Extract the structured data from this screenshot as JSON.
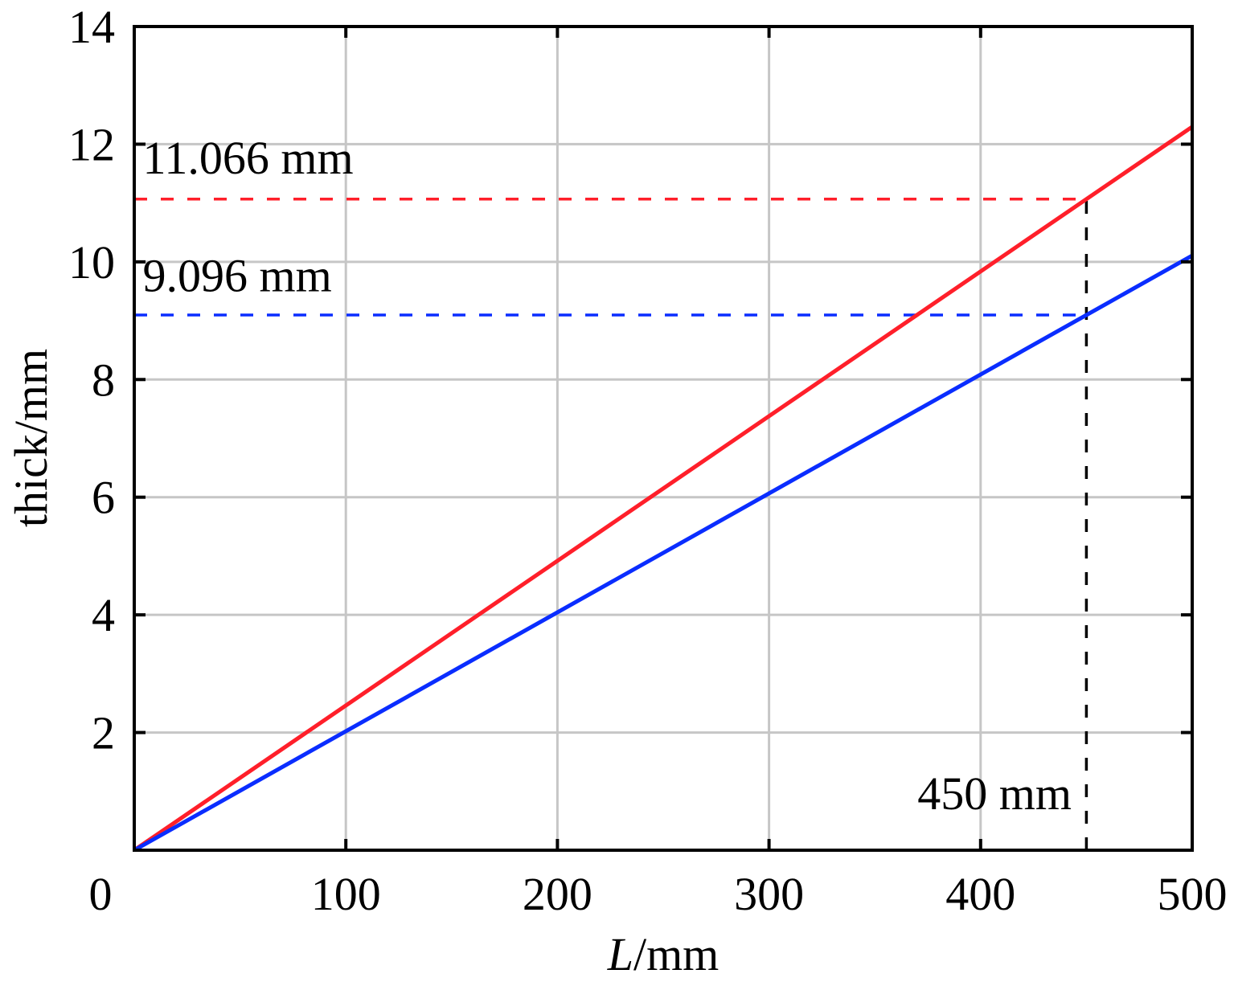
{
  "chart_data": {
    "type": "line",
    "title": "",
    "xlabel_italic": "L",
    "xlabel_rest": "/mm",
    "ylabel": "thick/mm",
    "xlim": [
      0,
      500
    ],
    "ylim": [
      0,
      14
    ],
    "xticks": [
      100,
      200,
      300,
      400,
      500
    ],
    "yticks": [
      2,
      4,
      6,
      8,
      10,
      12,
      14
    ],
    "origin_label": "0",
    "grid": true,
    "series": [
      {
        "name": "red",
        "color": "#ff1f2a",
        "x": [
          0,
          500
        ],
        "y": [
          0,
          12.296
        ]
      },
      {
        "name": "blue",
        "color": "#0a2dff",
        "x": [
          0,
          500
        ],
        "y": [
          0,
          10.107
        ]
      }
    ],
    "reference_lines": [
      {
        "type": "horizontal",
        "y": 11.066,
        "x_range": [
          0,
          450
        ],
        "color": "#ff1f2a"
      },
      {
        "type": "horizontal",
        "y": 9.096,
        "x_range": [
          0,
          450
        ],
        "color": "#0a2dff"
      },
      {
        "type": "vertical",
        "x": 450,
        "y_range": [
          0,
          11.066
        ],
        "color": "#000000"
      }
    ],
    "annotations": [
      {
        "text": "11.066 mm",
        "x": 4,
        "y": 11.5
      },
      {
        "text": "9.096 mm",
        "x": 4,
        "y": 9.5
      },
      {
        "text": "450 mm",
        "x": 443,
        "y": 0.7,
        "anchor": "end"
      }
    ]
  }
}
